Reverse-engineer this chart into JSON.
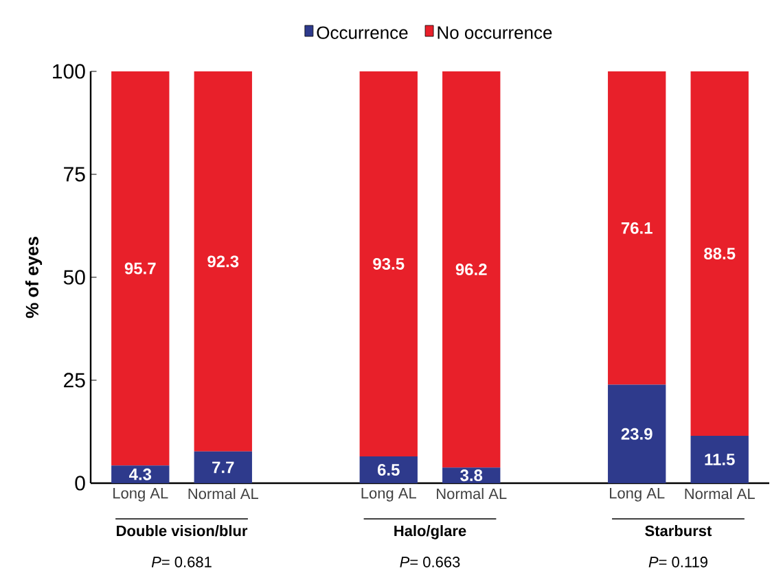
{
  "chart_data": {
    "type": "bar",
    "stacked": true,
    "ylabel": "% of eyes",
    "categories": [
      "Long AL",
      "Normal AL",
      null,
      "Long AL",
      "Normal AL",
      null,
      "Long AL",
      "Normal AL"
    ],
    "series": [
      {
        "name": "Occurrence",
        "color": "#2e3a8c",
        "values": [
          4.3,
          7.7,
          null,
          6.5,
          3.8,
          null,
          23.9,
          11.5
        ]
      },
      {
        "name": "No occurrence",
        "color": "#e8202a",
        "values": [
          95.7,
          92.3,
          null,
          93.5,
          96.2,
          null,
          76.1,
          88.5
        ]
      }
    ],
    "ylim": [
      0,
      100
    ],
    "yticks": [
      0,
      25,
      50,
      75,
      100
    ],
    "data_labels": true,
    "legend": "top",
    "grid": false,
    "annotations": [
      "Double vision/blur",
      "*P*= 0.681",
      "Halo/glare",
      "*P*= 0.663",
      "Starburst",
      "*P*= 0.119"
    ]
  }
}
